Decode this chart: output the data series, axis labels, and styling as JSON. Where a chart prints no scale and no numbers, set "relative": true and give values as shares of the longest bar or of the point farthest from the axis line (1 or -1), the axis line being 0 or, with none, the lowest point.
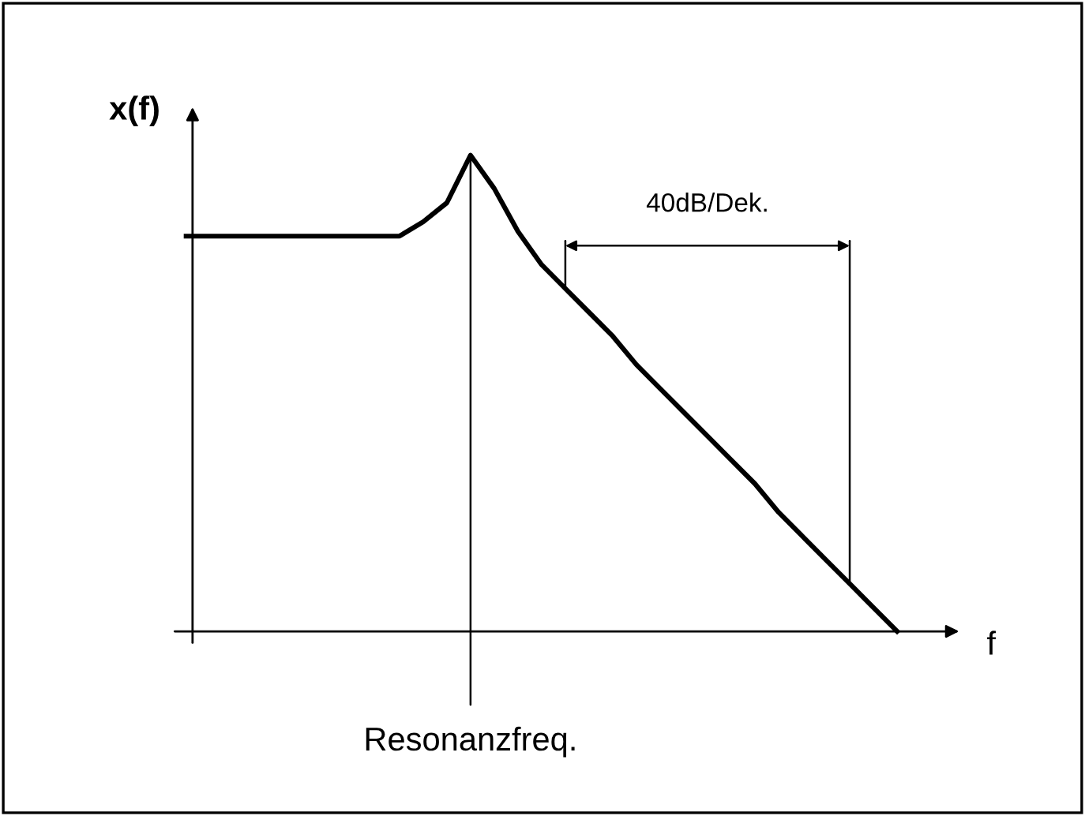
{
  "chart_data": {
    "type": "line",
    "relative": true,
    "xlabel": "f",
    "ylabel": "x(f)",
    "categories": [
      null,
      null,
      null,
      null,
      null,
      null,
      null,
      null,
      null,
      null,
      null,
      null,
      null,
      null,
      null,
      null,
      null,
      null,
      null,
      null,
      null,
      null,
      null,
      null,
      null,
      null,
      null,
      null,
      null,
      null,
      null
    ],
    "series": [
      {
        "color": "#000000",
        "values": [
          0.83,
          0.83,
          0.83,
          0.83,
          0.83,
          0.83,
          0.83,
          0.83,
          0.83,
          0.83,
          0.86,
          0.9,
          1,
          0.93,
          0.84,
          0.77,
          0.72,
          0.67,
          0.62,
          0.56,
          0.51,
          0.46,
          0.41,
          0.36,
          0.31,
          0.25,
          0.2,
          0.15,
          0.1,
          0.05,
          0
        ]
      }
    ],
    "annotations": [
      "Resonanzfreq.",
      "40dB/Dek."
    ],
    "marker": "none",
    "line_style": "solid",
    "grid": false,
    "legend": false
  }
}
